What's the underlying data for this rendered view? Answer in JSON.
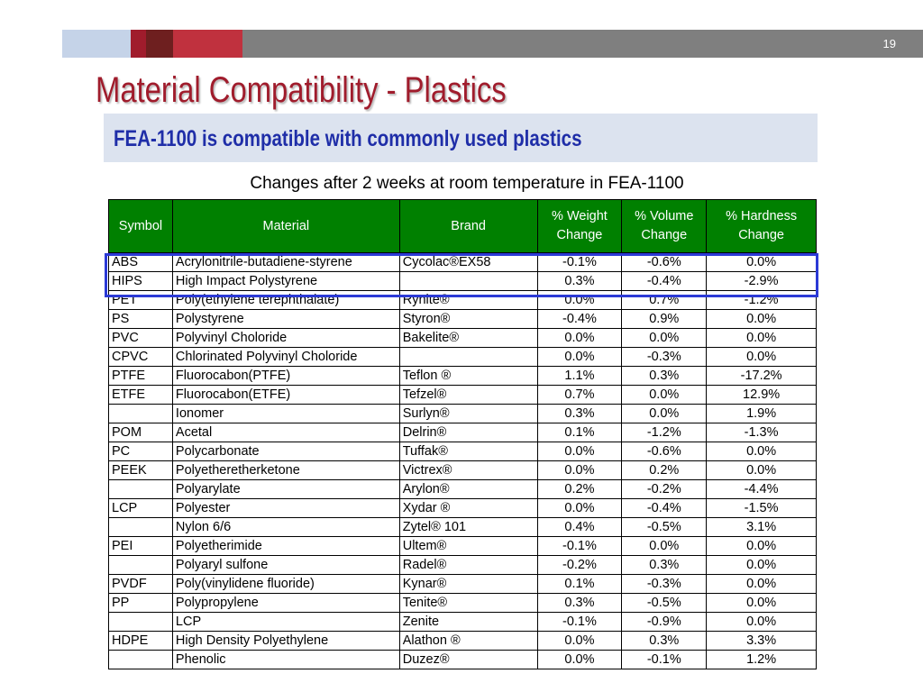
{
  "page_number": "19",
  "title": "Material Compatibility - Plastics",
  "subtitle": "FEA-1100 is compatible with commonly used plastics",
  "caption": "Changes after 2 weeks at room temperature in FEA-1100",
  "colors": {
    "title": "#a01c2c",
    "subtitle": "#1f2ea8",
    "header_bg": "#008000",
    "highlight": "#2c3ad6"
  },
  "table": {
    "headers": [
      "Symbol",
      "Material",
      "Brand",
      "% Weight Change",
      "% Volume Change",
      "% Hardness Change"
    ],
    "rows": [
      [
        "ABS",
        "Acrylonitrile-butadiene-styrene",
        "Cycolac®EX58",
        "-0.1%",
        "-0.6%",
        "0.0%"
      ],
      [
        "HIPS",
        "High Impact Polystyrene",
        "",
        "0.3%",
        "-0.4%",
        "-2.9%"
      ],
      [
        "PET",
        "Poly(ethylene terephthalate)",
        "Rynite®",
        "0.0%",
        "0.7%",
        "-1.2%"
      ],
      [
        "PS",
        "Polystyrene",
        "Styron®",
        "-0.4%",
        "0.9%",
        "0.0%"
      ],
      [
        "PVC",
        "Polyvinyl Choloride",
        "Bakelite®",
        "0.0%",
        "0.0%",
        "0.0%"
      ],
      [
        "CPVC",
        "Chlorinated Polyvinyl Choloride",
        "",
        "0.0%",
        "-0.3%",
        "0.0%"
      ],
      [
        "PTFE",
        "Fluorocabon(PTFE)",
        "Teflon ®",
        "1.1%",
        "0.3%",
        "-17.2%"
      ],
      [
        "ETFE",
        "Fluorocabon(ETFE)",
        "Tefzel®",
        "0.7%",
        "0.0%",
        "12.9%"
      ],
      [
        "",
        "Ionomer",
        "Surlyn®",
        "0.3%",
        "0.0%",
        "1.9%"
      ],
      [
        "POM",
        "Acetal",
        "Delrin®",
        "0.1%",
        "-1.2%",
        "-1.3%"
      ],
      [
        "PC",
        "Polycarbonate",
        "Tuffak®",
        "0.0%",
        "-0.6%",
        "0.0%"
      ],
      [
        "PEEK",
        "Polyetheretherketone",
        "Victrex®",
        "0.0%",
        "0.2%",
        "0.0%"
      ],
      [
        "",
        "Polyarylate",
        "Arylon®",
        "0.2%",
        "-0.2%",
        "-4.4%"
      ],
      [
        "LCP",
        "Polyester",
        "Xydar ®",
        "0.0%",
        "-0.4%",
        "-1.5%"
      ],
      [
        "",
        "Nylon 6/6",
        "Zytel® 101",
        "0.4%",
        "-0.5%",
        "3.1%"
      ],
      [
        "PEI",
        "Polyetherimide",
        "Ultem®",
        "-0.1%",
        "0.0%",
        "0.0%"
      ],
      [
        "",
        "Polyaryl sulfone",
        "Radel®",
        "-0.2%",
        "0.3%",
        "0.0%"
      ],
      [
        "PVDF",
        "Poly(vinylidene fluoride)",
        "Kynar®",
        "0.1%",
        "-0.3%",
        "0.0%"
      ],
      [
        "PP",
        "Polypropylene",
        "Tenite®",
        "0.3%",
        "-0.5%",
        "0.0%"
      ],
      [
        "",
        "LCP",
        "Zenite",
        "-0.1%",
        "-0.9%",
        "0.0%"
      ],
      [
        "HDPE",
        "High Density Polyethylene",
        "Alathon ®",
        "0.0%",
        "0.3%",
        "3.3%"
      ],
      [
        "",
        "Phenolic",
        "Duzez®",
        "0.0%",
        "-0.1%",
        "1.2%"
      ]
    ]
  }
}
